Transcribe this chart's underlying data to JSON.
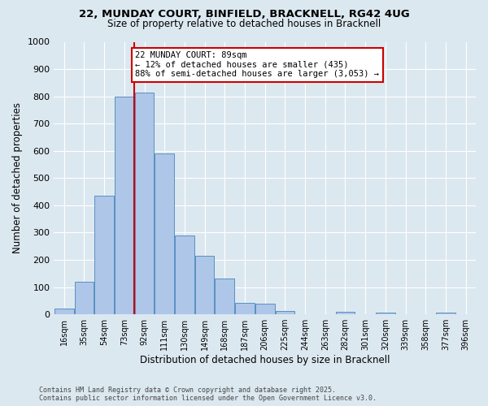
{
  "title1": "22, MUNDAY COURT, BINFIELD, BRACKNELL, RG42 4UG",
  "title2": "Size of property relative to detached houses in Bracknell",
  "xlabel": "Distribution of detached houses by size in Bracknell",
  "ylabel": "Number of detached properties",
  "bin_labels": [
    "16sqm",
    "35sqm",
    "54sqm",
    "73sqm",
    "92sqm",
    "111sqm",
    "130sqm",
    "149sqm",
    "168sqm",
    "187sqm",
    "206sqm",
    "225sqm",
    "244sqm",
    "263sqm",
    "282sqm",
    "301sqm",
    "320sqm",
    "339sqm",
    "358sqm",
    "377sqm",
    "396sqm"
  ],
  "bar_values": [
    20,
    120,
    435,
    800,
    815,
    590,
    290,
    215,
    130,
    42,
    38,
    13,
    0,
    0,
    10,
    0,
    5,
    0,
    0,
    5,
    0
  ],
  "bar_color": "#aec6e8",
  "bar_edge_color": "#5a8fc2",
  "property_line_x": 92,
  "bin_width": 19,
  "ylim": [
    0,
    1000
  ],
  "yticks": [
    0,
    100,
    200,
    300,
    400,
    500,
    600,
    700,
    800,
    900,
    1000
  ],
  "annotation_title": "22 MUNDAY COURT: 89sqm",
  "annotation_line1": "← 12% of detached houses are smaller (435)",
  "annotation_line2": "88% of semi-detached houses are larger (3,053) →",
  "vline_color": "#cc0000",
  "annotation_box_color": "#ffffff",
  "annotation_box_edge": "#cc0000",
  "footnote1": "Contains HM Land Registry data © Crown copyright and database right 2025.",
  "footnote2": "Contains public sector information licensed under the Open Government Licence v3.0.",
  "background_color": "#dce8f0",
  "plot_bg_color": "#dce8f0"
}
